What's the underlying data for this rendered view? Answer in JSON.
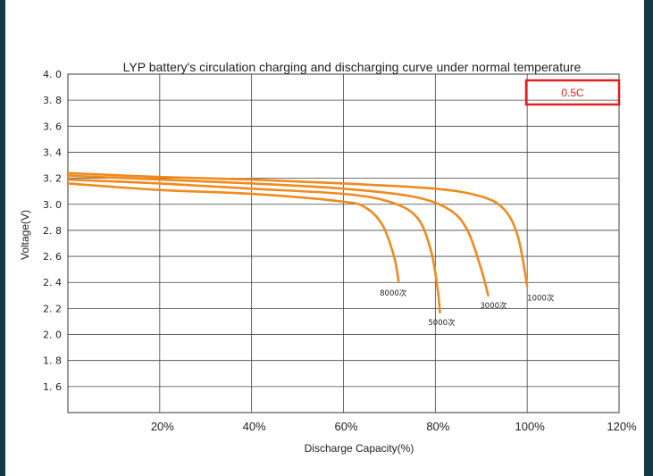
{
  "chart_data": {
    "type": "line",
    "title": "LYP battery's circulation charging and discharging curve under normal temperature",
    "xlabel": "Discharge  Capacity(%)",
    "ylabel": "Voltage(V)",
    "xlim": [
      0,
      120
    ],
    "ylim": [
      1.4,
      4.0
    ],
    "x_ticks": [
      "20%",
      "40%",
      "60%",
      "80%",
      "100%",
      "120%"
    ],
    "y_ticks": [
      "4. 0",
      "3. 8",
      "3. 6",
      "3. 4",
      "3. 2",
      "3. 0",
      "2. 8",
      "2. 6",
      "2. 4",
      "2. 2",
      "2. 0",
      "1. 8",
      "1. 6"
    ],
    "grid": true,
    "annotation": "0.5C",
    "series": [
      {
        "label": "1000次",
        "color": "#f08a1e",
        "x": [
          0,
          20,
          40,
          60,
          80,
          90,
          95,
          98,
          100
        ],
        "y": [
          3.24,
          3.21,
          3.19,
          3.16,
          3.12,
          3.06,
          2.96,
          2.75,
          2.37
        ]
      },
      {
        "label": "3000次",
        "color": "#f08a1e",
        "x": [
          0,
          20,
          40,
          60,
          75,
          83,
          87,
          90,
          91.5
        ],
        "y": [
          3.22,
          3.19,
          3.16,
          3.12,
          3.06,
          2.96,
          2.8,
          2.5,
          2.3
        ]
      },
      {
        "label": "5000次",
        "color": "#f08a1e",
        "x": [
          0,
          20,
          40,
          60,
          70,
          76,
          79,
          80.5,
          81
        ],
        "y": [
          3.19,
          3.16,
          3.12,
          3.08,
          3.02,
          2.9,
          2.65,
          2.35,
          2.17
        ]
      },
      {
        "label": "8000次",
        "color": "#f08a1e",
        "x": [
          0,
          20,
          40,
          60,
          65,
          68.5,
          71,
          72
        ],
        "y": [
          3.16,
          3.11,
          3.08,
          3.02,
          2.97,
          2.84,
          2.6,
          2.41
        ]
      }
    ]
  }
}
